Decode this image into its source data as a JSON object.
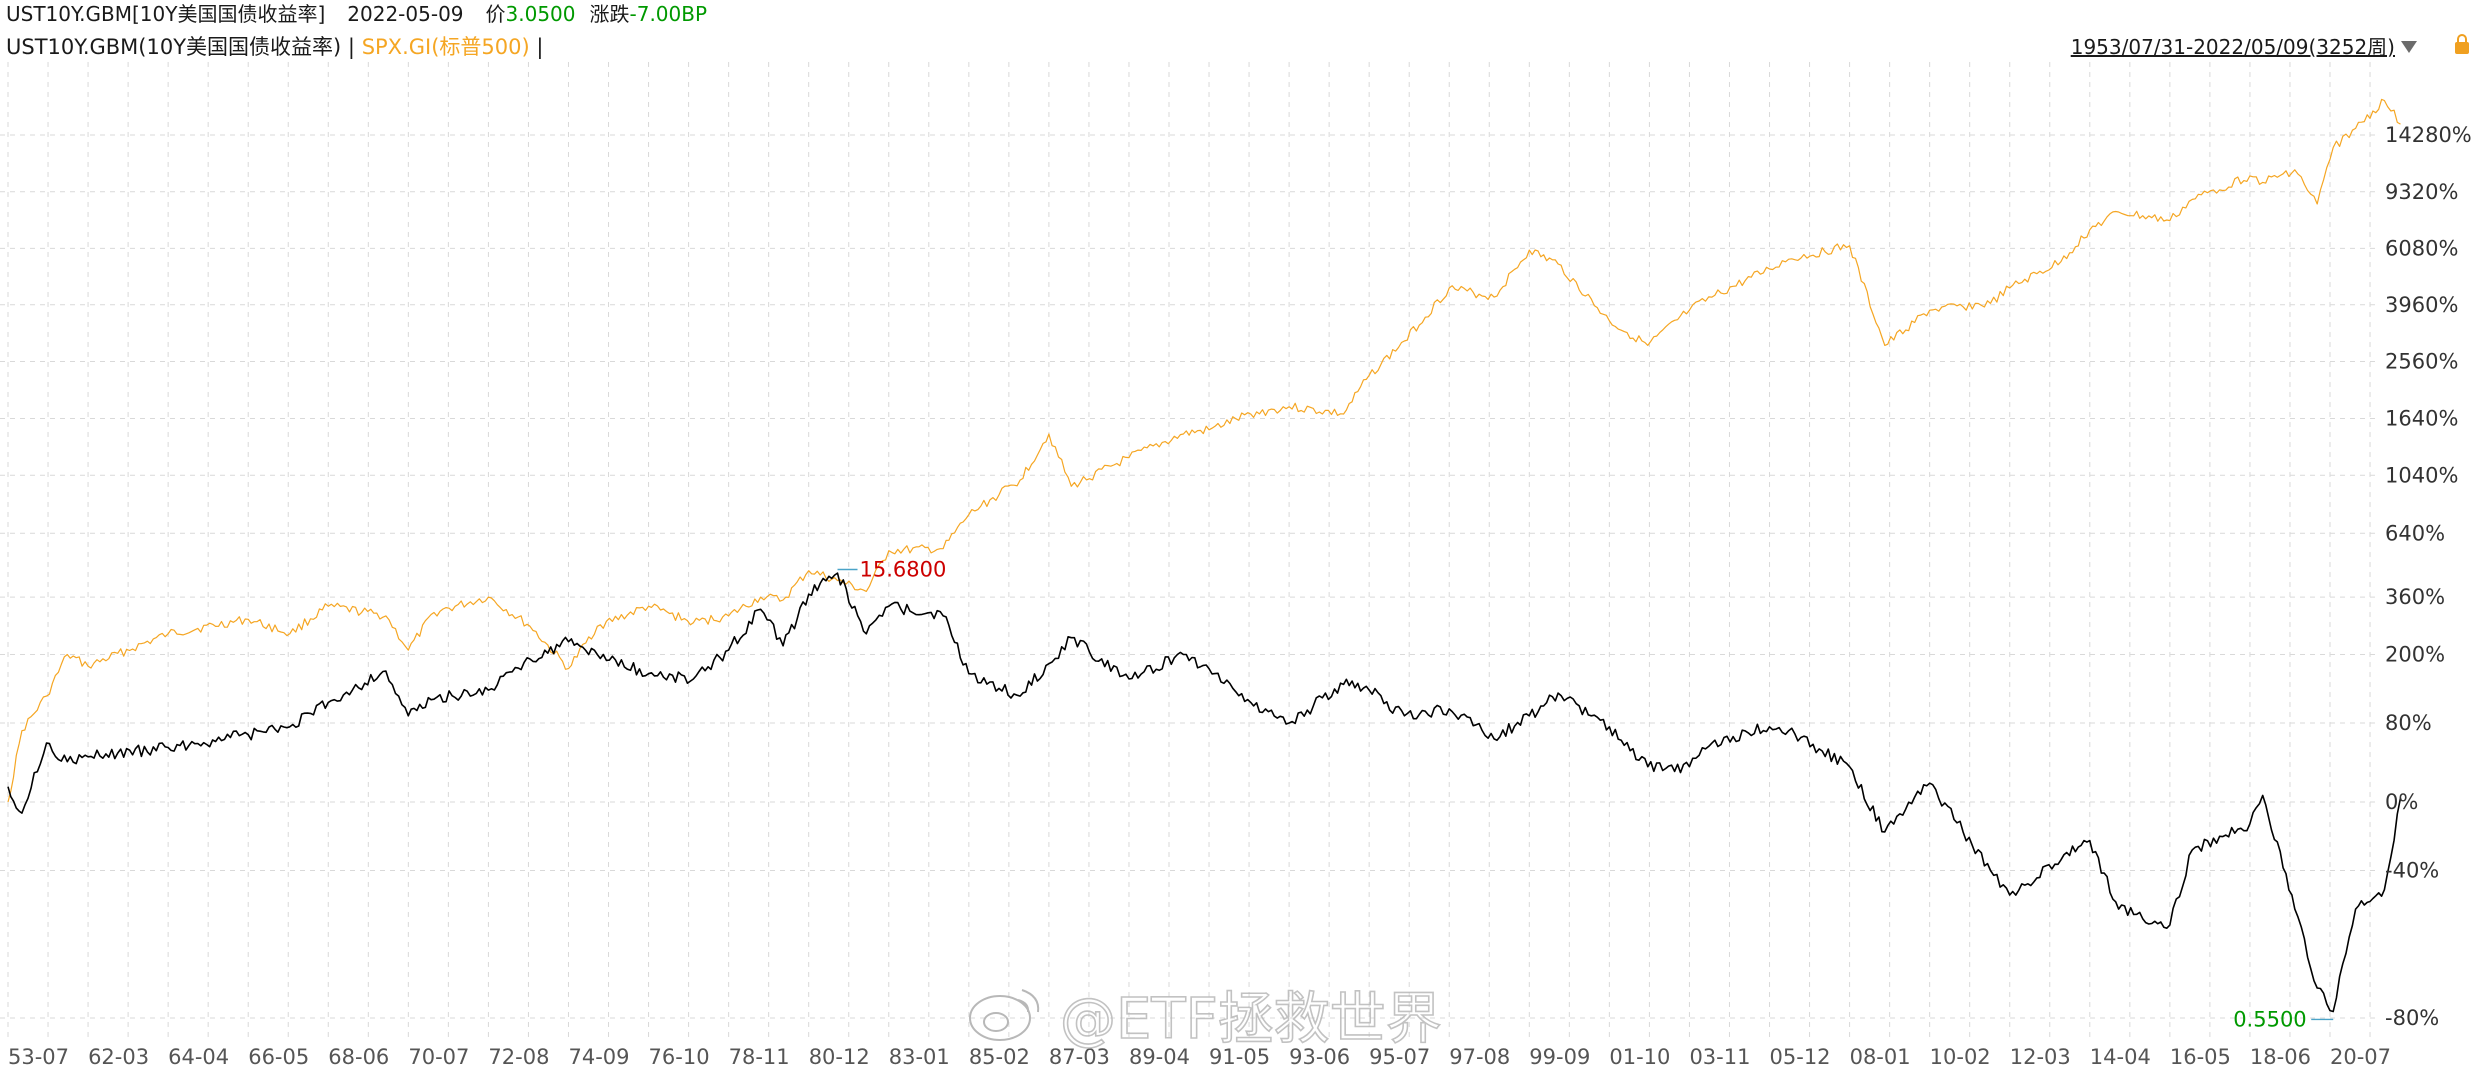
{
  "header": {
    "instrument": "UST10Y.GBM[10Y美国国债收益率]",
    "date": "2022-05-09",
    "price_label": "价",
    "price_value": "3.0500",
    "change_label": "涨跌",
    "change_value": "-7.00BP",
    "series_primary_label": "UST10Y.GBM(10Y美国国债收益率)",
    "separator": "|",
    "series_secondary_label": "SPX.GI(标普500)",
    "range_label": "1953/07/31-2022/05/09(3252周)"
  },
  "colors": {
    "ust_line": "#000000",
    "spx_line": "#f5a623",
    "price_value": "#009900",
    "change_value": "#009900",
    "max_label": "#cc0000",
    "min_label": "#009900",
    "grid": "#d9d9d9"
  },
  "icons": {
    "range_dropdown": "chevron-down-icon",
    "lock": "lock-icon"
  },
  "watermark": {
    "text": "@ETF拯救世界",
    "icon": "weibo-icon"
  },
  "chart_data": {
    "type": "line",
    "title": "",
    "y_scale": "log",
    "y_ticks": [
      "14280%",
      "9320%",
      "6080%",
      "3960%",
      "2560%",
      "1640%",
      "1040%",
      "640%",
      "360%",
      "200%",
      "80%",
      "0%",
      "-40%",
      "-80%"
    ],
    "y_tick_values": [
      14280,
      9320,
      6080,
      3960,
      2560,
      1640,
      1040,
      640,
      360,
      200,
      80,
      0,
      -40,
      -80
    ],
    "x_ticks": [
      "53-07",
      "62-03",
      "64-04",
      "66-05",
      "68-06",
      "70-07",
      "72-08",
      "74-09",
      "76-10",
      "78-11",
      "80-12",
      "83-01",
      "85-02",
      "87-03",
      "89-04",
      "91-05",
      "93-06",
      "95-07",
      "97-08",
      "99-09",
      "01-10",
      "03-11",
      "05-12",
      "08-01",
      "10-02",
      "12-03",
      "14-04",
      "16-05",
      "18-06",
      "20-07"
    ],
    "annotations": [
      {
        "label": "15.6800",
        "x": "81-09",
        "y_pct": 465,
        "kind": "max"
      },
      {
        "label": "0.5500",
        "x": "20-08",
        "y_pct": -79,
        "kind": "min"
      }
    ],
    "series": [
      {
        "name": "UST10Y.GBM(10Y美国国债收益率)",
        "x": [
          "53-07",
          "55-01",
          "57-09",
          "59-12",
          "62-03",
          "64-04",
          "66-05",
          "67-06",
          "68-06",
          "69-12",
          "70-07",
          "71-03",
          "72-08",
          "73-09",
          "74-09",
          "75-06",
          "76-10",
          "77-12",
          "78-11",
          "79-09",
          "80-04",
          "80-12",
          "81-09",
          "82-06",
          "83-01",
          "84-06",
          "85-02",
          "86-06",
          "87-03",
          "87-10",
          "89-04",
          "90-09",
          "91-05",
          "92-06",
          "93-06",
          "94-11",
          "95-07",
          "96-06",
          "97-08",
          "98-10",
          "99-09",
          "00-06",
          "01-10",
          "02-10",
          "03-11",
          "04-06",
          "05-12",
          "06-06",
          "08-01",
          "08-12",
          "10-02",
          "11-09",
          "12-03",
          "13-07",
          "14-04",
          "15-01",
          "16-05",
          "16-12",
          "18-06",
          "18-10",
          "19-08",
          "20-03",
          "20-08",
          "21-03",
          "21-12",
          "22-05"
        ],
        "y": [
          12,
          -8,
          55,
          35,
          40,
          50,
          65,
          75,
          110,
          165,
          90,
          115,
          130,
          190,
          230,
          200,
          160,
          150,
          210,
          320,
          220,
          370,
          450,
          250,
          330,
          300,
          160,
          120,
          180,
          240,
          150,
          200,
          170,
          110,
          80,
          140,
          130,
          90,
          100,
          60,
          90,
          125,
          75,
          30,
          30,
          55,
          75,
          70,
          30,
          -20,
          15,
          -40,
          -50,
          -35,
          -25,
          -55,
          -60,
          -30,
          -15,
          5,
          -55,
          -75,
          -79,
          -55,
          -48,
          3
        ]
      },
      {
        "name": "SPX.GI(标普500)",
        "x": [
          "53-07",
          "55-01",
          "57-09",
          "59-12",
          "62-03",
          "64-04",
          "66-05",
          "67-06",
          "68-06",
          "69-12",
          "70-07",
          "71-03",
          "72-08",
          "73-09",
          "74-09",
          "75-06",
          "76-10",
          "77-12",
          "78-11",
          "79-09",
          "80-04",
          "80-12",
          "81-09",
          "82-06",
          "83-01",
          "84-06",
          "85-02",
          "86-06",
          "87-03",
          "87-10",
          "89-04",
          "90-09",
          "91-05",
          "92-06",
          "93-06",
          "94-11",
          "95-07",
          "96-06",
          "97-08",
          "98-10",
          "99-09",
          "00-06",
          "01-10",
          "02-10",
          "03-11",
          "04-06",
          "05-12",
          "06-06",
          "08-01",
          "08-12",
          "10-02",
          "11-09",
          "12-03",
          "13-07",
          "14-04",
          "15-01",
          "16-05",
          "16-12",
          "18-06",
          "18-10",
          "19-08",
          "20-03",
          "20-08",
          "21-03",
          "21-12",
          "22-05"
        ],
        "y": [
          0,
          70,
          120,
          200,
          175,
          250,
          290,
          250,
          330,
          300,
          210,
          310,
          360,
          270,
          170,
          270,
          330,
          280,
          300,
          360,
          350,
          460,
          420,
          380,
          550,
          560,
          750,
          1000,
          1450,
          950,
          1200,
          1450,
          1500,
          1700,
          1800,
          1700,
          2300,
          3000,
          4500,
          4200,
          6000,
          5400,
          3500,
          2900,
          3800,
          4200,
          5200,
          5600,
          6200,
          2900,
          3800,
          4000,
          4500,
          5500,
          7000,
          8000,
          7500,
          8800,
          10500,
          10000,
          11000,
          8500,
          13000,
          15000,
          18500,
          15500
        ]
      }
    ]
  }
}
